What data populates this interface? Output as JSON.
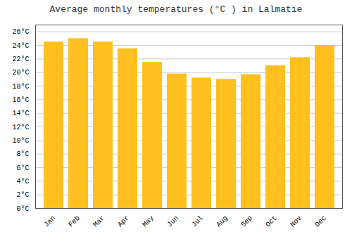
{
  "chart_data": {
    "type": "bar",
    "title": "Average monthly temperatures (°C ) in Lalmatie",
    "categories": [
      "Jan",
      "Feb",
      "Mar",
      "Apr",
      "May",
      "Jun",
      "Jul",
      "Aug",
      "Sep",
      "Oct",
      "Nov",
      "Dec"
    ],
    "values": [
      24.5,
      25.0,
      24.5,
      23.5,
      21.5,
      19.8,
      19.2,
      19.0,
      19.7,
      21.0,
      22.2,
      24.0
    ],
    "color": "#FFC020",
    "ylim": [
      0,
      27
    ],
    "yticks": [
      {
        "value": 0,
        "label": "0°C"
      },
      {
        "value": 2,
        "label": "2°C"
      },
      {
        "value": 4,
        "label": "4°C"
      },
      {
        "value": 6,
        "label": "6°C"
      },
      {
        "value": 8,
        "label": "8°C"
      },
      {
        "value": 10,
        "label": "10°C"
      },
      {
        "value": 12,
        "label": "12°C"
      },
      {
        "value": 14,
        "label": "14°C"
      },
      {
        "value": 16,
        "label": "16°C"
      },
      {
        "value": 18,
        "label": "18°C"
      },
      {
        "value": 20,
        "label": "20°C"
      },
      {
        "value": 22,
        "label": "22°C"
      },
      {
        "value": 24,
        "label": "24°C"
      },
      {
        "value": 26,
        "label": "26°C"
      }
    ],
    "grid": true
  }
}
